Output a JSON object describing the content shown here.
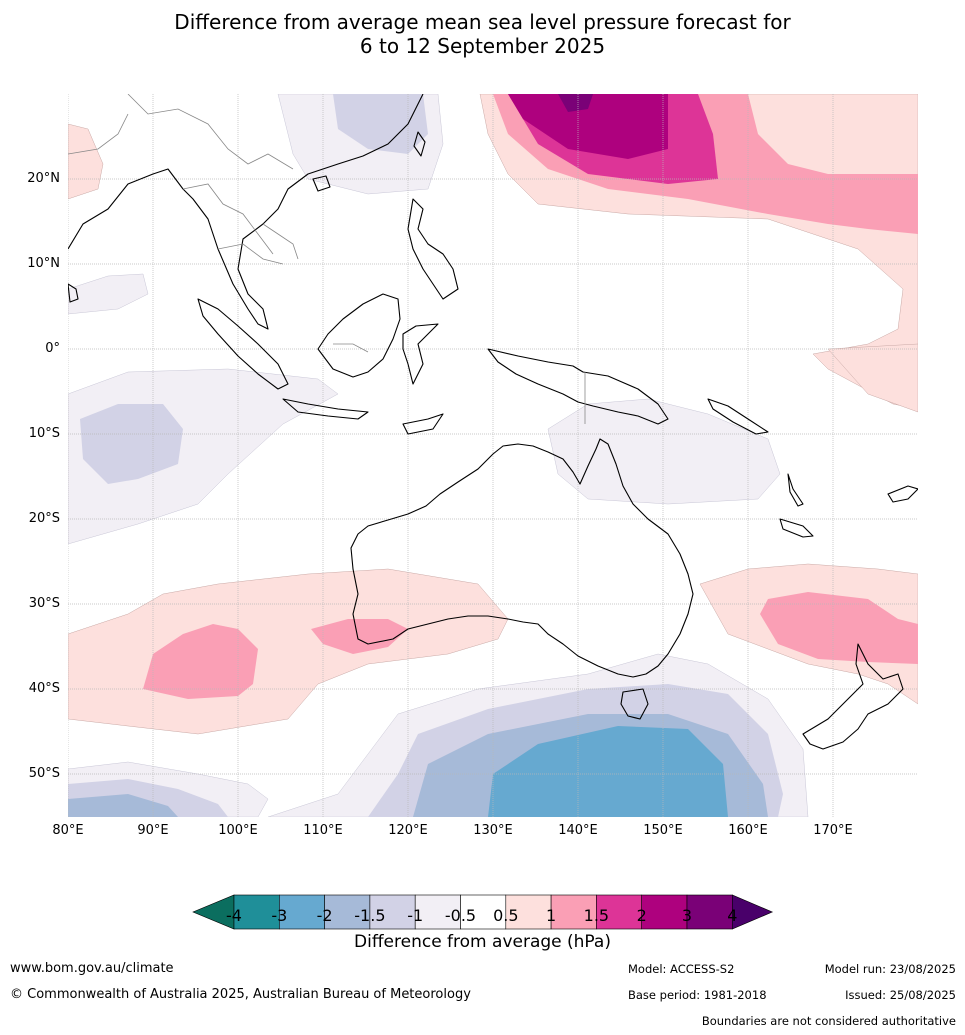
{
  "title_line1": "Difference from average mean sea level pressure forecast for",
  "title_line2": "6 to 12 September 2025",
  "lat_labels": [
    "20°N",
    "10°N",
    "0°",
    "10°S",
    "20°S",
    "30°S",
    "40°S",
    "50°S"
  ],
  "lon_labels": [
    "80°E",
    "90°E",
    "100°E",
    "110°E",
    "120°E",
    "130°E",
    "140°E",
    "150°E",
    "160°E",
    "170°E"
  ],
  "colorbar": {
    "ticks": [
      "-4",
      "-3",
      "-2",
      "-1.5",
      "-1",
      "-0.5",
      "0.5",
      "1",
      "1.5",
      "2",
      "3",
      "4"
    ],
    "colors": [
      "#0b6e5f",
      "#1f8f99",
      "#66a9d0",
      "#a6bad8",
      "#d2d2e6",
      "#f2eff5",
      "#ffffff",
      "#fde0dd",
      "#fa9fb5",
      "#dd3497",
      "#ae017e",
      "#7a0177",
      "#49006a"
    ],
    "label": "Difference from average (hPa)"
  },
  "footer": {
    "website": "www.bom.gov.au/climate",
    "copyright": "© Commonwealth of Australia 2025, Australian Bureau of Meteorology",
    "model": "Model: ACCESS-S2",
    "base_period": "Base period: 1981-2018",
    "model_run": "Model run: 23/08/2025",
    "issued": "Issued: 25/08/2025",
    "disclaimer": "Boundaries are not considered authoritative"
  }
}
